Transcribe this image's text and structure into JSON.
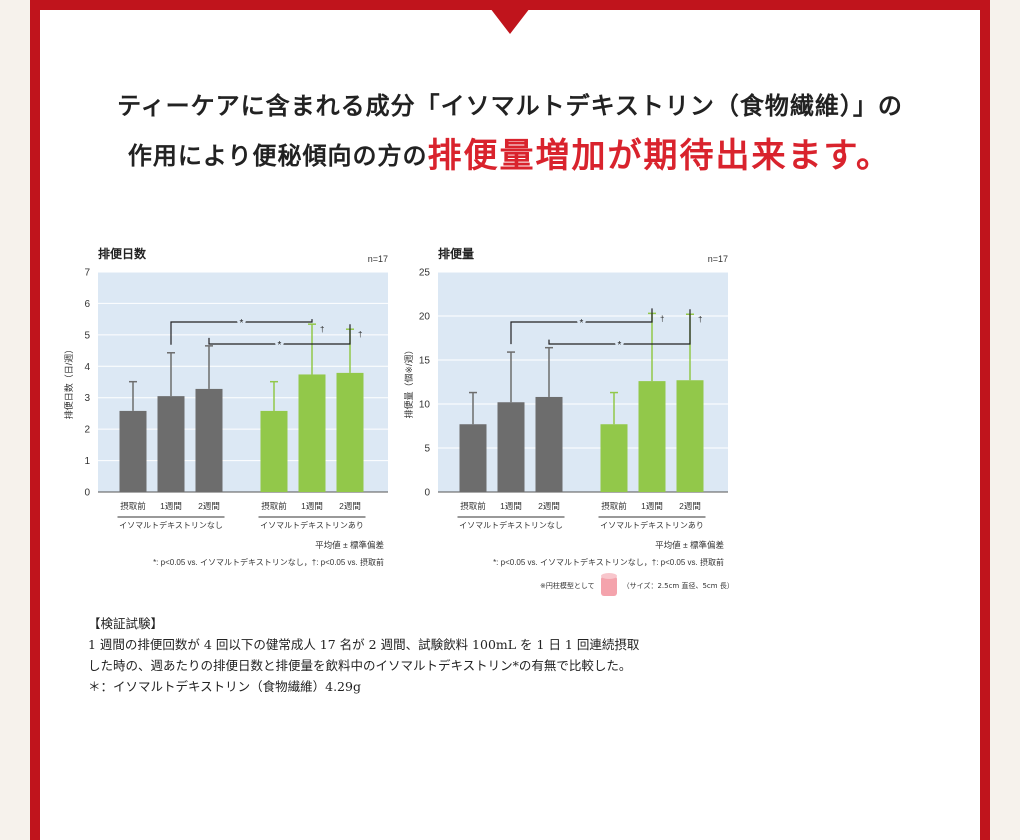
{
  "colors": {
    "frame": "#c0141c",
    "accent": "#d9232d",
    "plot_bg": "#dce8f4",
    "gray_bar": "#6d6d6d",
    "green_bar": "#92c84a"
  },
  "headline": {
    "line1": "ティーケアに含まれる成分「イソマルトデキストリン（食物繊維）」の",
    "line2_plain": "作用により便秘傾向の方の",
    "line2_emphasis": "排便量増加が期待出来ます。"
  },
  "chart_data": [
    {
      "type": "bar",
      "title": "排便日数",
      "n_label": "n=17",
      "ylabel": "排便日数（日/週）",
      "ylim": [
        0,
        7
      ],
      "yticks": [
        0,
        1,
        2,
        3,
        4,
        5,
        6,
        7
      ],
      "categories": [
        "摂取前",
        "1週間",
        "2週間",
        "摂取前",
        "1週間",
        "2週間"
      ],
      "groups": [
        "イソマルトデキストリンなし",
        "イソマルトデキストリンあり"
      ],
      "values": [
        2.58,
        3.05,
        3.28,
        2.58,
        3.74,
        3.79
      ],
      "errors": [
        0.93,
        1.38,
        1.37,
        0.93,
        1.6,
        1.39
      ],
      "dagger": [
        false,
        false,
        false,
        false,
        true,
        true
      ],
      "legend_line1": "平均値 ± 標準偏差",
      "legend_line2": "*: p<0.05 vs. イソマルトデキストリンなし，†: p<0.05 vs. 摂取前"
    },
    {
      "type": "bar",
      "title": "排便量",
      "n_label": "n=17",
      "ylabel": "排便量（個※/週）",
      "ylim": [
        0,
        25
      ],
      "yticks": [
        0,
        5,
        10,
        15,
        20,
        25
      ],
      "categories": [
        "摂取前",
        "1週間",
        "2週間",
        "摂取前",
        "1週間",
        "2週間"
      ],
      "groups": [
        "イソマルトデキストリンなし",
        "イソマルトデキストリンあり"
      ],
      "values": [
        7.7,
        10.2,
        10.8,
        7.7,
        12.6,
        12.7
      ],
      "errors": [
        3.6,
        5.7,
        5.6,
        3.6,
        7.7,
        7.5
      ],
      "dagger": [
        false,
        false,
        false,
        false,
        true,
        true
      ],
      "legend_line1": "平均値 ± 標準偏差",
      "legend_line2": "*: p<0.05 vs. イソマルトデキストリンなし，†: p<0.05 vs. 摂取前"
    }
  ],
  "shape_note": {
    "prefix": "※円柱模型として",
    "size": "（サイズ：2.5cm 直径、5cm 長）"
  },
  "study": {
    "heading": "【検証試験】",
    "line1": "1 週間の排便回数が 4 回以下の健常成人 17 名が 2 週間、試験飲料 100mL を 1 日 1 回連続摂取",
    "line2": "した時の、週あたりの排便日数と排便量を飲料中のイソマルトデキストリン*の有無で比較した。",
    "line3": "＊：イソマルトデキストリン（食物繊維）4.29g"
  }
}
